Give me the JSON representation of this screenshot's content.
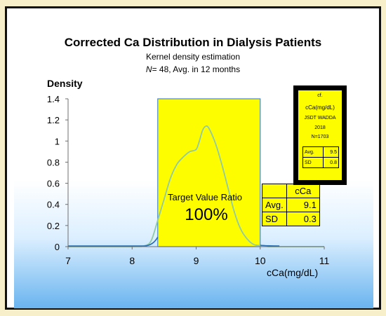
{
  "chart_data": {
    "type": "area",
    "title": "Corrected Ca Distribution in Dialysis Patients",
    "subtitle": "Kernel density estimation",
    "subtitle2_prefix": "N",
    "subtitle2_rest": "= 48, Avg. in 12 months",
    "xlabel": "cCa(mg/dL)",
    "ylabel": "Density",
    "xlim": [
      7,
      11
    ],
    "ylim": [
      0,
      1.4
    ],
    "xticks": [
      "7",
      "8",
      "9",
      "10",
      "11"
    ],
    "yticks": [
      "0",
      "0.2",
      "0.4",
      "0.6",
      "0.8",
      "1",
      "1.2",
      "1.4"
    ],
    "target_range": [
      8.4,
      10.0
    ],
    "target_label": "Target  Value Ratio",
    "target_value": "100%",
    "series": [
      {
        "x": [
          7.0,
          8.0,
          8.2,
          8.3,
          8.4,
          8.5,
          8.6,
          8.7,
          8.8,
          8.9,
          9.0,
          9.05,
          9.1,
          9.15,
          9.2,
          9.3,
          9.4,
          9.5,
          9.6,
          9.7,
          9.8,
          9.9,
          10.0,
          10.1,
          10.2,
          11.0
        ],
        "y": [
          0,
          0,
          0.01,
          0.06,
          0.25,
          0.45,
          0.65,
          0.78,
          0.85,
          0.9,
          0.92,
          1.0,
          1.1,
          1.14,
          1.12,
          0.98,
          0.78,
          0.55,
          0.32,
          0.16,
          0.07,
          0.02,
          0.01,
          0.005,
          0,
          0
        ]
      }
    ],
    "colors": {
      "target_fill": "#fdfd00",
      "target_border": "#4a86c8",
      "curve": "#8fc9a6",
      "baseline": "#2a6cb0"
    }
  },
  "stats_table": {
    "header": "cCa",
    "rows": [
      {
        "label": "Avg.",
        "value": "9.1"
      },
      {
        "label": "SD",
        "value": "0.3"
      }
    ]
  },
  "reference_box": {
    "lines": [
      "cf.",
      "cCa(mg/dL)",
      "JSDT WADDA",
      "2018",
      "N=1703"
    ],
    "rows": [
      {
        "label": "Avg.",
        "value": "9.5"
      },
      {
        "label": "SD",
        "value": "0.8"
      }
    ]
  }
}
